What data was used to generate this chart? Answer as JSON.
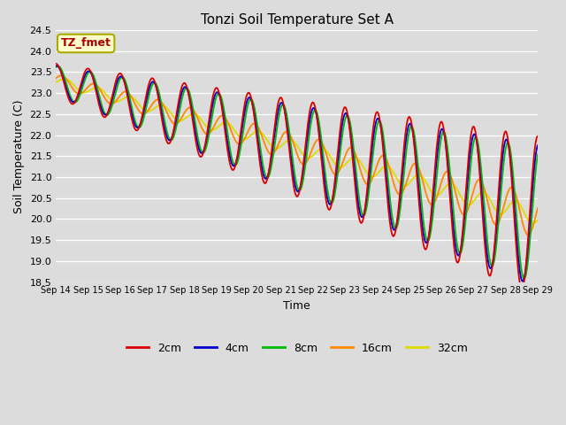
{
  "title": "Tonzi Soil Temperature Set A",
  "xlabel": "Time",
  "ylabel": "Soil Temperature (C)",
  "ylim": [
    18.5,
    24.5
  ],
  "fig_facecolor": "#dcdcdc",
  "ax_facecolor": "#dcdcdc",
  "annotation_text": "TZ_fmet",
  "annotation_bg": "#ffffcc",
  "annotation_border": "#aaaa00",
  "series_colors": {
    "2cm": "#dd0000",
    "4cm": "#0000cc",
    "8cm": "#00bb00",
    "16cm": "#ff8800",
    "32cm": "#dddd00"
  },
  "x_tick_labels": [
    "Sep 14",
    "Sep 15",
    "Sep 16",
    "Sep 17",
    "Sep 18",
    "Sep 19",
    "Sep 20",
    "Sep 21",
    "Sep 22",
    "Sep 23",
    "Sep 24",
    "Sep 25",
    "Sep 26",
    "Sep 27",
    "Sep 28",
    "Sep 29"
  ],
  "yticks": [
    18.5,
    19.0,
    19.5,
    20.0,
    20.5,
    21.0,
    21.5,
    22.0,
    22.5,
    23.0,
    23.5,
    24.0,
    24.5
  ],
  "n_days": 15,
  "n_points": 720
}
